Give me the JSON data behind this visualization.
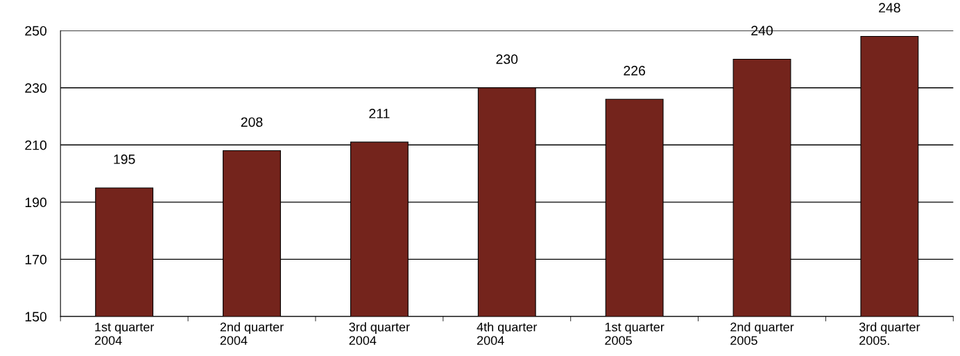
{
  "chart_data": {
    "type": "bar",
    "categories": [
      "1st quarter\n2004",
      "2nd quarter\n2004",
      "3rd quarter\n2004",
      "4th quarter\n2004",
      "1st quarter\n2005",
      "2nd quarter\n2005",
      "3rd quarter\n2005."
    ],
    "values": [
      195,
      208,
      211,
      230,
      226,
      240,
      248
    ],
    "color": "#74241c",
    "ylim": [
      150,
      250
    ],
    "yticks": [
      150,
      170,
      190,
      210,
      230,
      250
    ],
    "grid": "y",
    "data_labels": true
  }
}
